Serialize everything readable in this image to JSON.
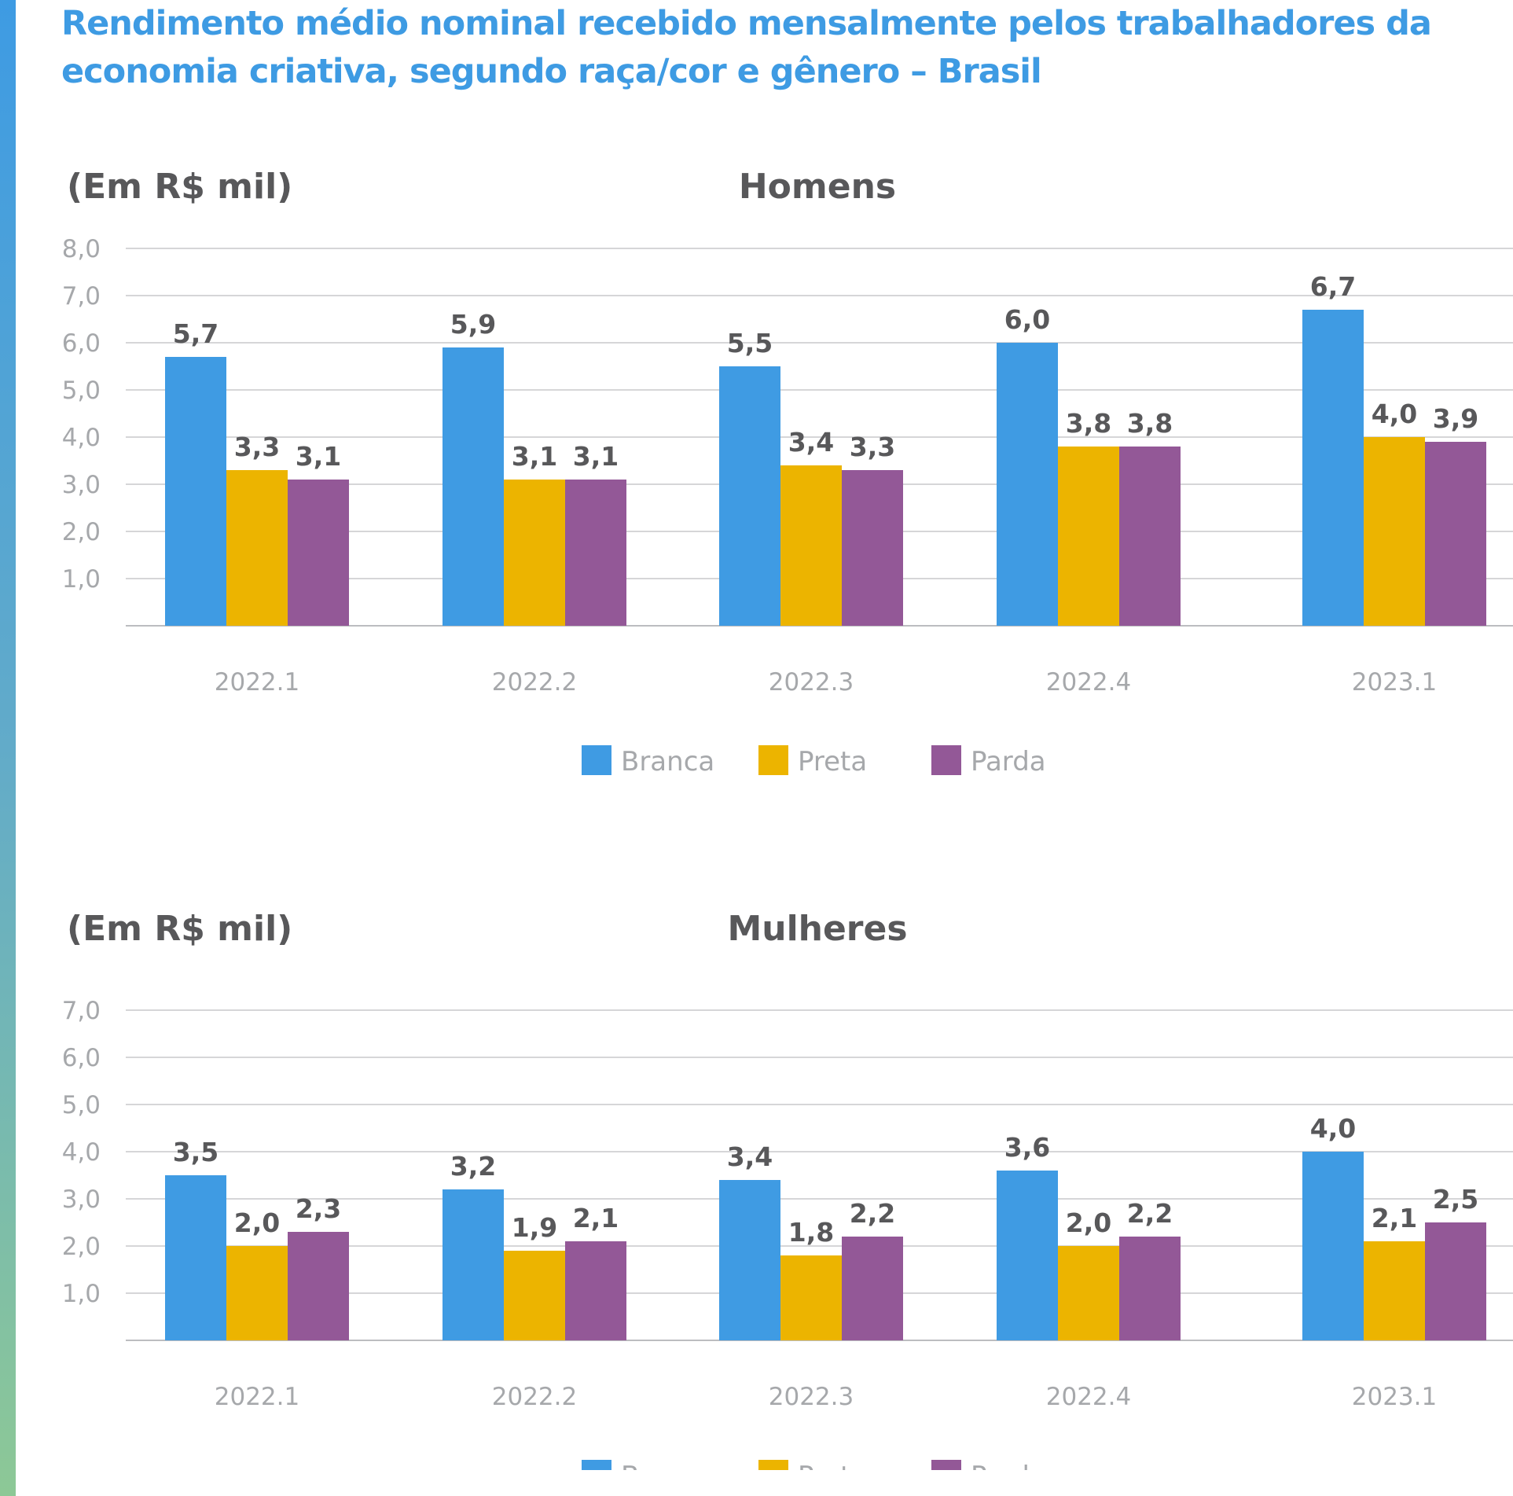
{
  "title": "Rendimento médio nominal recebido mensalmente pelos trabalhadores da economia criativa, segundo raça/cor e gênero – Brasil",
  "colors": {
    "accent": "#3e9be3",
    "Branca": "#3f9be3",
    "Preta": "#ecb400",
    "Parda": "#935897"
  },
  "chart_data": [
    {
      "type": "bar",
      "title": "Homens",
      "unit_label": "(Em R$ mil)",
      "categories": [
        "2022.1",
        "2022.2",
        "2022.3",
        "2022.4",
        "2023.1"
      ],
      "series": [
        {
          "name": "Branca",
          "values": [
            5.7,
            5.9,
            5.5,
            6.0,
            6.7
          ],
          "labels": [
            "5,7",
            "5,9",
            "5,5",
            "6,0",
            "6,7"
          ]
        },
        {
          "name": "Preta",
          "values": [
            3.3,
            3.1,
            3.4,
            3.8,
            4.0
          ],
          "labels": [
            "3,3",
            "3,1",
            "3,4",
            "3,8",
            "4,0"
          ]
        },
        {
          "name": "Parda",
          "values": [
            3.1,
            3.1,
            3.3,
            3.8,
            3.9
          ],
          "labels": [
            "3,1",
            "3,1",
            "3,3",
            "3,8",
            "3,9"
          ]
        }
      ],
      "ylim": [
        0,
        8
      ],
      "yticks": [
        "1,0",
        "2,0",
        "3,0",
        "4,0",
        "5,0",
        "6,0",
        "7,0",
        "8,0"
      ],
      "grid": true,
      "legend": "bottom-center"
    },
    {
      "type": "bar",
      "title": "Mulheres",
      "unit_label": "(Em R$ mil)",
      "categories": [
        "2022.1",
        "2022.2",
        "2022.3",
        "2022.4",
        "2023.1"
      ],
      "series": [
        {
          "name": "Branca",
          "values": [
            3.5,
            3.2,
            3.4,
            3.6,
            4.0
          ],
          "labels": [
            "3,5",
            "3,2",
            "3,4",
            "3,6",
            "4,0"
          ]
        },
        {
          "name": "Preta",
          "values": [
            2.0,
            1.9,
            1.8,
            2.0,
            2.1
          ],
          "labels": [
            "2,0",
            "1,9",
            "1,8",
            "2,0",
            "2,1"
          ]
        },
        {
          "name": "Parda",
          "values": [
            2.3,
            2.1,
            2.2,
            2.2,
            2.5
          ],
          "labels": [
            "2,3",
            "2,1",
            "2,2",
            "2,2",
            "2,5"
          ]
        }
      ],
      "ylim": [
        0,
        7
      ],
      "yticks": [
        "1,0",
        "2,0",
        "3,0",
        "4,0",
        "5,0",
        "6,0",
        "7,0"
      ],
      "grid": true,
      "legend": "bottom-center"
    }
  ]
}
